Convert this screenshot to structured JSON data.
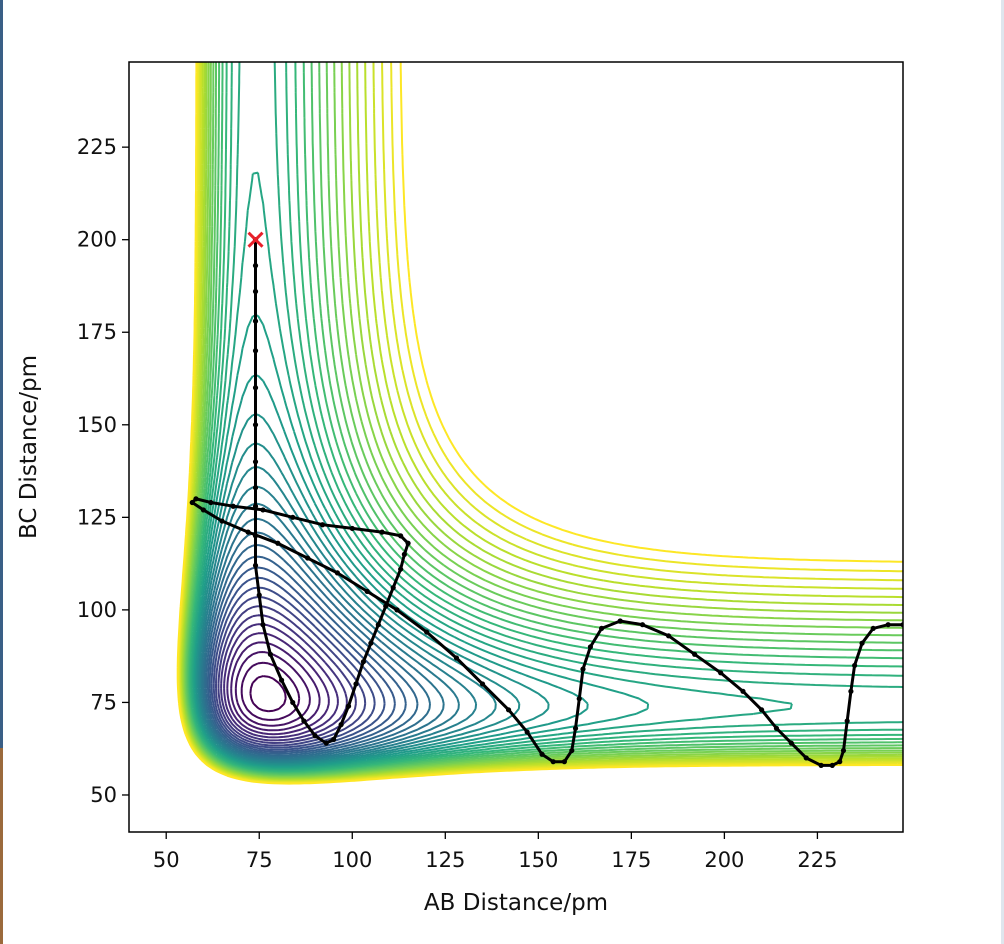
{
  "chart_data": {
    "type": "contour",
    "title": "",
    "xlabel": "AB Distance/pm",
    "ylabel": "BC Distance/pm",
    "xlim": [
      40,
      248
    ],
    "ylim": [
      40,
      248
    ],
    "xticks": [
      50,
      75,
      100,
      125,
      150,
      175,
      200,
      225
    ],
    "yticks": [
      50,
      75,
      100,
      125,
      150,
      175,
      200,
      225
    ],
    "grid": false,
    "colormap": "viridis",
    "contour_levels": 40,
    "start_marker": {
      "x": 74,
      "y": 200,
      "symbol": "x",
      "color": "#e8202a"
    },
    "trajectory_color": "#000000",
    "trajectory": [
      [
        74,
        200
      ],
      [
        74,
        193
      ],
      [
        74,
        186
      ],
      [
        74,
        178
      ],
      [
        74,
        170
      ],
      [
        74,
        160
      ],
      [
        74,
        150
      ],
      [
        74,
        140
      ],
      [
        74,
        133
      ],
      [
        74,
        128
      ],
      [
        74,
        120
      ],
      [
        74,
        112
      ],
      [
        75,
        104
      ],
      [
        76,
        96
      ],
      [
        78,
        88
      ],
      [
        81,
        81
      ],
      [
        84,
        75
      ],
      [
        87,
        70
      ],
      [
        90,
        66
      ],
      [
        93,
        64
      ],
      [
        95,
        65
      ],
      [
        97,
        69
      ],
      [
        99,
        74
      ],
      [
        101,
        80
      ],
      [
        103,
        86
      ],
      [
        105,
        91
      ],
      [
        107,
        96
      ],
      [
        109,
        101
      ],
      [
        111,
        106
      ],
      [
        113,
        111
      ],
      [
        114,
        115
      ],
      [
        115,
        118
      ],
      [
        113,
        120
      ],
      [
        108,
        121
      ],
      [
        100,
        122
      ],
      [
        92,
        123
      ],
      [
        84,
        125
      ],
      [
        76,
        127
      ],
      [
        68,
        128
      ],
      [
        62,
        129
      ],
      [
        58,
        130
      ],
      [
        57,
        129
      ],
      [
        60,
        127
      ],
      [
        65,
        124
      ],
      [
        72,
        121
      ],
      [
        80,
        118
      ],
      [
        88,
        114
      ],
      [
        96,
        110
      ],
      [
        104,
        105
      ],
      [
        112,
        100
      ],
      [
        120,
        94
      ],
      [
        128,
        87
      ],
      [
        135,
        80
      ],
      [
        142,
        73
      ],
      [
        147,
        67
      ],
      [
        151,
        61
      ],
      [
        154,
        59
      ],
      [
        157,
        59
      ],
      [
        159,
        62
      ],
      [
        160,
        68
      ],
      [
        161,
        76
      ],
      [
        162,
        84
      ],
      [
        164,
        90
      ],
      [
        167,
        95
      ],
      [
        172,
        97
      ],
      [
        178,
        96
      ],
      [
        185,
        93
      ],
      [
        192,
        88
      ],
      [
        199,
        83
      ],
      [
        205,
        78
      ],
      [
        210,
        73
      ],
      [
        214,
        68
      ],
      [
        218,
        64
      ],
      [
        222,
        60
      ],
      [
        226,
        58
      ],
      [
        229,
        58
      ],
      [
        231,
        59
      ],
      [
        232,
        62
      ],
      [
        233,
        70
      ],
      [
        234,
        78
      ],
      [
        235,
        85
      ],
      [
        237,
        91
      ],
      [
        240,
        95
      ],
      [
        244,
        96
      ],
      [
        248,
        96
      ]
    ]
  }
}
